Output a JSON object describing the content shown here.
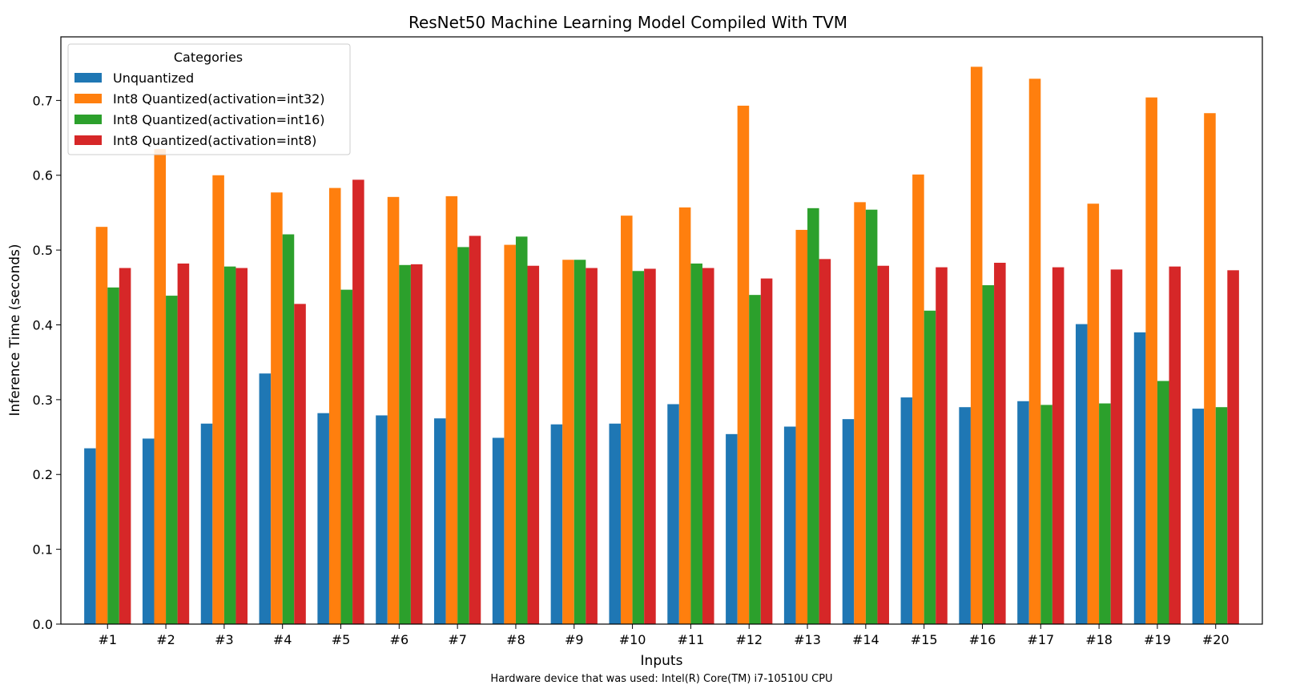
{
  "chart_data": {
    "type": "bar",
    "title": "ResNet50 Machine Learning Model Compiled With TVM",
    "xlabel": "Inputs",
    "ylabel": "Inference Time (seconds)",
    "footnote": "Hardware device that was used: Intel(R) Core(TM) i7-10510U CPU",
    "ylim": [
      0.0,
      0.785
    ],
    "yticks": [
      0.0,
      0.1,
      0.2,
      0.3,
      0.4,
      0.5,
      0.6,
      0.7
    ],
    "ytick_labels": [
      "0.0",
      "0.1",
      "0.2",
      "0.3",
      "0.4",
      "0.5",
      "0.6",
      "0.7"
    ],
    "categories": [
      "#1",
      "#2",
      "#3",
      "#4",
      "#5",
      "#6",
      "#7",
      "#8",
      "#9",
      "#10",
      "#11",
      "#12",
      "#13",
      "#14",
      "#15",
      "#16",
      "#17",
      "#18",
      "#19",
      "#20"
    ],
    "grid": false,
    "legend": {
      "title": "Categories",
      "placement": "top-left"
    },
    "series": [
      {
        "name": "Unquantized",
        "color": "#1f77b4",
        "values": [
          0.235,
          0.248,
          0.268,
          0.335,
          0.282,
          0.279,
          0.275,
          0.249,
          0.267,
          0.268,
          0.294,
          0.254,
          0.264,
          0.274,
          0.303,
          0.29,
          0.298,
          0.401,
          0.39,
          0.288
        ]
      },
      {
        "name": "Int8 Quantized(activation=int32)",
        "color": "#ff7f0e",
        "values": [
          0.531,
          0.635,
          0.6,
          0.577,
          0.583,
          0.571,
          0.572,
          0.507,
          0.487,
          0.546,
          0.557,
          0.693,
          0.527,
          0.564,
          0.601,
          0.745,
          0.729,
          0.562,
          0.704,
          0.683
        ]
      },
      {
        "name": "Int8 Quantized(activation=int16)",
        "color": "#2ca02c",
        "values": [
          0.45,
          0.439,
          0.478,
          0.521,
          0.447,
          0.48,
          0.504,
          0.518,
          0.487,
          0.472,
          0.482,
          0.44,
          0.556,
          0.554,
          0.419,
          0.453,
          0.293,
          0.295,
          0.325,
          0.29
        ]
      },
      {
        "name": "Int8 Quantized(activation=int8)",
        "color": "#d62728",
        "values": [
          0.476,
          0.482,
          0.476,
          0.428,
          0.594,
          0.481,
          0.519,
          0.479,
          0.476,
          0.475,
          0.476,
          0.462,
          0.488,
          0.479,
          0.477,
          0.483,
          0.477,
          0.474,
          0.478,
          0.473
        ]
      }
    ]
  }
}
